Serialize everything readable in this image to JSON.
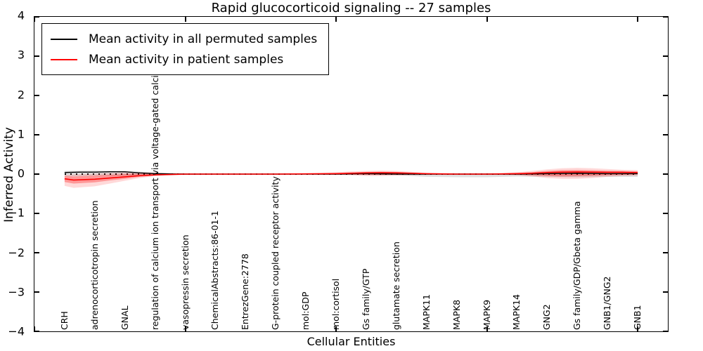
{
  "chart_data": {
    "type": "line",
    "title": "Rapid glucocorticoid signaling -- 27 samples",
    "xlabel": "Cellular Entities",
    "ylabel": "Inferred Activity",
    "xlim": [
      0,
      21
    ],
    "ylim": [
      -4,
      4
    ],
    "yticks": [
      4,
      3,
      2,
      1,
      0,
      -1,
      -2,
      -3,
      -4
    ],
    "xticks": [
      0,
      5,
      10,
      15,
      20
    ],
    "grid": false,
    "legend_position": "upper left",
    "zero_line": {
      "style": "dotted",
      "color": "#000000"
    },
    "categories": [
      "CRH",
      "adrenocorticotropin secretion",
      "GNAL",
      "regulation of calcium ion transport via voltage-gated calcium channel",
      "vasopressin secretion",
      "ChemicalAbstracts:86-01-1",
      "EntrezGene:2778",
      "G-protein coupled receptor activity",
      "mol:GDP",
      "mol:cortisol",
      "Gs family/GTP",
      "glutamate secretion",
      "MAPK11",
      "MAPK8",
      "MAPK9",
      "MAPK14",
      "GNG2",
      "Gs family/GDP/Gbeta gamma",
      "GNB1/GNG2",
      "GNB1"
    ],
    "series": [
      {
        "name": "Mean activity in all permuted samples",
        "color": "#000000",
        "x": [
          1,
          1.5,
          2,
          2.5,
          3,
          3.5,
          4,
          5,
          6,
          7,
          8,
          9,
          10,
          11,
          12,
          13,
          14,
          15,
          16,
          17,
          18,
          19,
          20
        ],
        "y": [
          0.04,
          0.05,
          0.05,
          0.06,
          0.06,
          0.03,
          0.01,
          0,
          0,
          0,
          0,
          0,
          0,
          0.01,
          0,
          0,
          0,
          0,
          0,
          0.01,
          0.02,
          0.01,
          0.01
        ]
      },
      {
        "name": "Mean activity in patient samples",
        "color": "#ff0000",
        "x": [
          1,
          1.3,
          2,
          2.5,
          3,
          3.5,
          4,
          4.5,
          5,
          6,
          7,
          8,
          9,
          10,
          10.5,
          11,
          11.5,
          12,
          12.5,
          13,
          14,
          15,
          16,
          16.5,
          17,
          17.5,
          18,
          18.5,
          19,
          19.5,
          20
        ],
        "y": [
          -0.12,
          -0.15,
          -0.13,
          -0.1,
          -0.07,
          -0.04,
          -0.02,
          -0.01,
          0,
          0,
          0,
          0,
          0.005,
          0.01,
          0.02,
          0.03,
          0.035,
          0.03,
          0.02,
          0.01,
          0,
          0,
          0.01,
          0.02,
          0.04,
          0.05,
          0.055,
          0.05,
          0.045,
          0.045,
          0.04
        ]
      }
    ],
    "bands": [
      {
        "name": "permuted-samples-confidence-band",
        "color": "rgba(0,0,0,0.12)",
        "x": [
          1,
          2,
          3,
          4,
          5,
          6,
          7,
          8,
          9,
          10,
          11,
          12,
          12.5,
          13,
          14,
          15,
          16,
          17,
          18,
          19,
          20
        ],
        "upper": [
          0.08,
          0.09,
          0.08,
          0.04,
          0.02,
          0.01,
          0.01,
          0.01,
          0.01,
          0.02,
          0.02,
          0.02,
          0.02,
          0.02,
          0.02,
          0.02,
          0.02,
          0.04,
          0.05,
          0.05,
          0.05
        ],
        "lower": [
          -0.06,
          -0.05,
          -0.04,
          -0.03,
          -0.02,
          -0.01,
          -0.01,
          -0.01,
          -0.01,
          -0.02,
          -0.02,
          -0.03,
          -0.05,
          -0.07,
          -0.08,
          -0.08,
          -0.06,
          -0.07,
          -0.08,
          -0.07,
          -0.07
        ]
      },
      {
        "name": "patient-samples-confidence-band-outer",
        "color": "rgba(255,0,0,0.15)",
        "x": [
          1,
          1.3,
          2,
          2.5,
          3,
          3.5,
          4,
          4.5,
          5,
          6,
          7,
          8,
          9,
          10,
          10.5,
          11,
          11.5,
          12,
          12.5,
          13,
          14,
          15,
          16,
          16.5,
          17,
          17.5,
          18,
          18.5,
          19,
          19.5,
          20
        ],
        "upper": [
          -0.02,
          -0.01,
          0.01,
          0.03,
          0.05,
          0.05,
          0.04,
          0.02,
          0.01,
          0.01,
          0.01,
          0.01,
          0.02,
          0.05,
          0.07,
          0.08,
          0.09,
          0.08,
          0.06,
          0.03,
          0.01,
          0.01,
          0.05,
          0.08,
          0.12,
          0.15,
          0.16,
          0.15,
          0.13,
          0.11,
          0.1
        ],
        "lower": [
          -0.3,
          -0.35,
          -0.31,
          -0.24,
          -0.17,
          -0.1,
          -0.05,
          -0.03,
          -0.02,
          -0.01,
          -0.01,
          -0.01,
          -0.01,
          -0.02,
          -0.03,
          -0.05,
          -0.05,
          -0.04,
          -0.03,
          -0.02,
          -0.01,
          -0.01,
          -0.03,
          -0.06,
          -0.1,
          -0.12,
          -0.12,
          -0.1,
          -0.07,
          -0.05,
          -0.04
        ]
      },
      {
        "name": "patient-samples-confidence-band-inner",
        "color": "rgba(255,0,0,0.30)",
        "x": [
          1,
          1.3,
          2,
          2.5,
          3,
          3.5,
          4,
          4.5,
          5,
          6,
          7,
          8,
          9,
          10,
          10.5,
          11,
          11.5,
          12,
          12.5,
          13,
          14,
          15,
          16,
          16.5,
          17,
          17.5,
          18,
          18.5,
          19,
          19.5,
          20
        ],
        "upper": [
          -0.05,
          -0.06,
          -0.04,
          -0.02,
          0.0,
          0.01,
          0.01,
          0.01,
          0.005,
          0.005,
          0.005,
          0.005,
          0.01,
          0.03,
          0.045,
          0.055,
          0.06,
          0.055,
          0.04,
          0.02,
          0.005,
          0.005,
          0.03,
          0.05,
          0.08,
          0.1,
          0.105,
          0.095,
          0.085,
          0.08,
          0.07
        ],
        "lower": [
          -0.2,
          -0.24,
          -0.21,
          -0.16,
          -0.12,
          -0.07,
          -0.04,
          -0.02,
          -0.01,
          -0.005,
          -0.005,
          -0.005,
          -0.005,
          -0.01,
          -0.015,
          -0.02,
          -0.02,
          -0.015,
          -0.01,
          -0.005,
          -0.005,
          -0.005,
          -0.015,
          -0.03,
          -0.05,
          -0.06,
          -0.055,
          -0.045,
          -0.03,
          -0.02,
          -0.01
        ]
      }
    ]
  }
}
